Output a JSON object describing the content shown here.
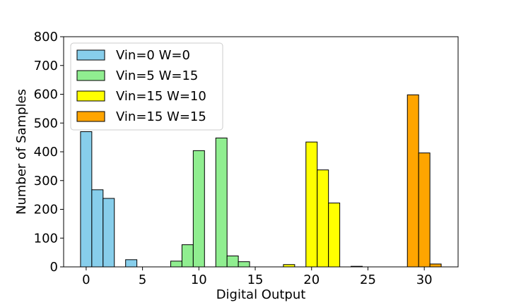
{
  "chart_data": {
    "type": "bar",
    "title": "",
    "xlabel": "Digital Output",
    "ylabel": "Number of Samples",
    "xlim": [
      -2,
      33
    ],
    "ylim": [
      0,
      800
    ],
    "xticks": [
      0,
      5,
      10,
      15,
      20,
      25,
      30
    ],
    "yticks": [
      0,
      100,
      200,
      300,
      400,
      500,
      600,
      700,
      800
    ],
    "bar_width": 1,
    "legend_position": "top-left",
    "grid": false,
    "series": [
      {
        "name": "Vin=0 W=0",
        "color": "#87CEEB",
        "x": [
          0,
          1,
          2,
          4
        ],
        "values": [
          470,
          268,
          238,
          25
        ]
      },
      {
        "name": "Vin=5 W=15",
        "color": "#90EE90",
        "x": [
          8,
          9,
          10,
          12,
          13,
          14
        ],
        "values": [
          20,
          77,
          404,
          448,
          38,
          18
        ]
      },
      {
        "name": "Vin=15 W=10",
        "color": "#FFFF00",
        "x": [
          18,
          20,
          21,
          22
        ],
        "values": [
          8,
          434,
          337,
          222
        ]
      },
      {
        "name": "Vin=15 W=15",
        "color": "#FFA500",
        "x": [
          24,
          29,
          30,
          31
        ],
        "values": [
          2,
          598,
          396,
          10
        ]
      }
    ]
  }
}
